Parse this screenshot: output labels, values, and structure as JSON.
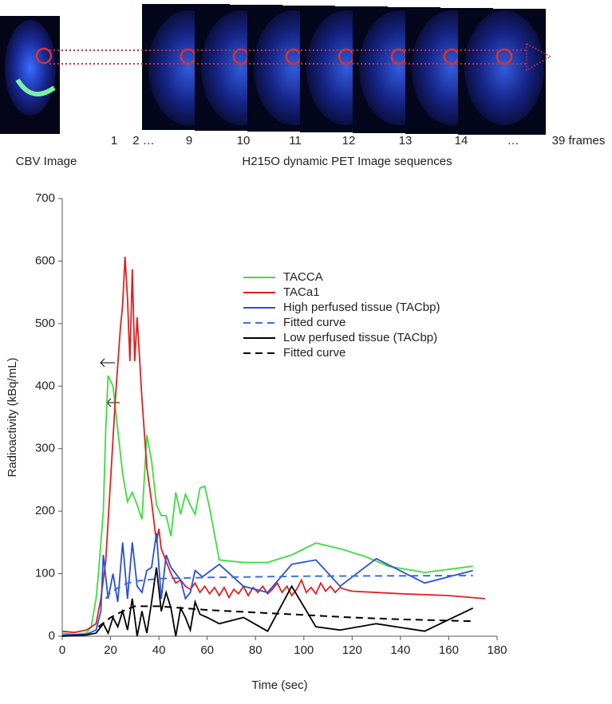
{
  "figure": {
    "cbv_label": "CBV Image",
    "sequence_label": "H215O dynamic PET Image sequences",
    "frame_labels": [
      "1",
      "2 …",
      "9",
      "10",
      "11",
      "12",
      "13",
      "14",
      "…",
      "39 frames"
    ]
  },
  "chart_data": {
    "type": "line",
    "xlabel": "Time (sec)",
    "ylabel": "Radioactivity (kBq/mL)",
    "xlim": [
      0,
      180
    ],
    "xticks": [
      0,
      20,
      40,
      60,
      80,
      100,
      120,
      140,
      160,
      180
    ],
    "ylim": [
      0,
      700
    ],
    "yticks": [
      0,
      100,
      200,
      300,
      400,
      500,
      600,
      700
    ],
    "legend": "upper right",
    "series": [
      {
        "name": "TACCA",
        "color": "#3ddc3d",
        "dash": false,
        "x": [
          0,
          5,
          10,
          12,
          14,
          15,
          17,
          18,
          19,
          21,
          23,
          25,
          27,
          29,
          31,
          33,
          35,
          37,
          39,
          41,
          43,
          45,
          47,
          49,
          51,
          53,
          55,
          57,
          59,
          61,
          65,
          75,
          85,
          95,
          105,
          115,
          125,
          135,
          150,
          170
        ],
        "values": [
          5,
          3,
          5,
          15,
          60,
          100,
          200,
          330,
          417,
          400,
          330,
          260,
          215,
          230,
          210,
          187,
          322,
          280,
          210,
          193,
          193,
          160,
          230,
          195,
          227,
          210,
          195,
          237,
          240,
          205,
          122,
          118,
          118,
          130,
          149,
          140,
          128,
          112,
          102,
          112
        ]
      },
      {
        "name": "TACa1",
        "color": "#e02020",
        "dash": false,
        "x": [
          0,
          5,
          10,
          14,
          16,
          18,
          20,
          22,
          24,
          25,
          26,
          27,
          28,
          29,
          30,
          31,
          33,
          35,
          37,
          39,
          40,
          41,
          43,
          45,
          47,
          49,
          51,
          53,
          55,
          57,
          59,
          61,
          63,
          65,
          67,
          69,
          71,
          73,
          75,
          77,
          79,
          81,
          83,
          85,
          87,
          89,
          91,
          93,
          95,
          97,
          99,
          101,
          103,
          105,
          107,
          109,
          111,
          113,
          115,
          117,
          120,
          140,
          160,
          175
        ],
        "values": [
          8,
          6,
          10,
          20,
          60,
          120,
          250,
          380,
          490,
          530,
          607,
          540,
          440,
          587,
          440,
          510,
          380,
          270,
          215,
          150,
          172,
          140,
          120,
          100,
          85,
          90,
          80,
          75,
          85,
          70,
          80,
          68,
          78,
          65,
          78,
          62,
          75,
          68,
          80,
          65,
          78,
          70,
          80,
          68,
          75,
          85,
          70,
          80,
          65,
          75,
          90,
          70,
          78,
          68,
          85,
          72,
          80,
          70,
          78,
          75,
          72,
          68,
          65,
          60
        ]
      },
      {
        "name": "High perfused tissue (TACbp)",
        "color": "#2a4fd6",
        "dash": false,
        "x": [
          0,
          10,
          14,
          16,
          17,
          19,
          21,
          23,
          25,
          27,
          29,
          31,
          33,
          35,
          37,
          39,
          41,
          43,
          45,
          47,
          49,
          51,
          53,
          55,
          58,
          65,
          75,
          85,
          95,
          105,
          115,
          130,
          150,
          170
        ],
        "values": [
          2,
          3,
          10,
          40,
          130,
          60,
          100,
          55,
          150,
          60,
          150,
          80,
          70,
          105,
          110,
          165,
          60,
          130,
          110,
          100,
          90,
          60,
          70,
          105,
          95,
          115,
          80,
          70,
          115,
          122,
          80,
          124,
          85,
          105
        ]
      },
      {
        "name": "Fitted curve",
        "color": "#3a6fe0",
        "dash": true,
        "x": [
          18,
          20,
          25,
          30,
          40,
          60,
          100,
          170
        ],
        "values": [
          60,
          70,
          82,
          88,
          92,
          94,
          96,
          97
        ]
      },
      {
        "name": "Low perfused tissue (TACbp)",
        "color": "#000000",
        "dash": false,
        "x": [
          0,
          10,
          14,
          17,
          19,
          21,
          23,
          25,
          27,
          29,
          31,
          33,
          35,
          37,
          39,
          41,
          43,
          45,
          47,
          49,
          51,
          53,
          55,
          57,
          60,
          65,
          75,
          85,
          95,
          105,
          115,
          130,
          150,
          170
        ],
        "values": [
          0,
          2,
          5,
          20,
          5,
          30,
          15,
          40,
          10,
          60,
          0,
          40,
          5,
          55,
          110,
          40,
          70,
          45,
          0,
          45,
          30,
          10,
          55,
          35,
          30,
          20,
          30,
          8,
          80,
          15,
          10,
          20,
          8,
          45
        ]
      },
      {
        "name": "Fitted curve",
        "color": "#000000",
        "dash": true,
        "x": [
          15,
          20,
          25,
          30,
          40,
          60,
          80,
          100,
          120,
          140,
          170
        ],
        "values": [
          15,
          30,
          40,
          48,
          48,
          42,
          38,
          34,
          30,
          27,
          24
        ]
      }
    ]
  }
}
